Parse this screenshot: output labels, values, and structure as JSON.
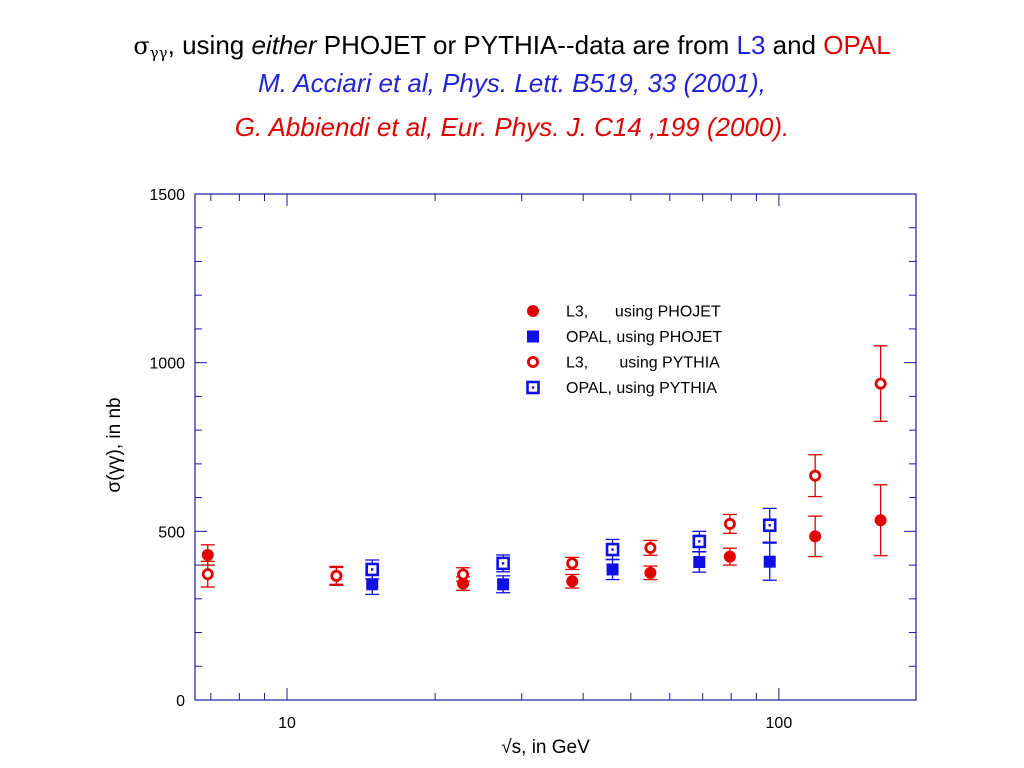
{
  "title": {
    "line1": {
      "symbol": "σ",
      "subscript": "γγ",
      "part1": ", using ",
      "either": "either",
      "part2": " PHOJET or PYTHIA--data are from ",
      "l3": "L3",
      "and": " and ",
      "opal": "OPAL"
    },
    "line2": "M. Acciari et al, Phys. Lett. B519, 33 (2001),",
    "line3": "G. Abbiendi et al, Eur. Phys. J. C14 ,199 (2000)."
  },
  "colors": {
    "l3": "#e00000",
    "opal": "#1010e6",
    "axis": "#1a1aa0"
  },
  "chart_data": {
    "type": "scatter",
    "xlabel": "√s, in GeV",
    "ylabel": "σ(γγ), in nb",
    "xscale": "log",
    "xlim": [
      6.5,
      190
    ],
    "ylim": [
      0,
      1500
    ],
    "xticks": [
      10,
      100
    ],
    "yticks": [
      0,
      500,
      1000,
      1500
    ],
    "legend_position": "top-right",
    "series": [
      {
        "name": "L3,      using PHOJET",
        "marker": "filled-circle",
        "color": "#e00000",
        "points": [
          {
            "x": 6.9,
            "y": 430,
            "err": 30
          },
          {
            "x": 12.6,
            "y": 368,
            "err": 25
          },
          {
            "x": 22.8,
            "y": 345,
            "err": 20
          },
          {
            "x": 38.0,
            "y": 352,
            "err": 20
          },
          {
            "x": 54.8,
            "y": 377,
            "err": 20
          },
          {
            "x": 79.5,
            "y": 425,
            "err": 25
          },
          {
            "x": 118.5,
            "y": 485,
            "err": 60
          },
          {
            "x": 161.0,
            "y": 533,
            "err": 105
          }
        ]
      },
      {
        "name": "OPAL, using PHOJET",
        "marker": "filled-square",
        "color": "#1010e6",
        "points": [
          {
            "x": 14.9,
            "y": 343,
            "err": 30
          },
          {
            "x": 27.5,
            "y": 343,
            "err": 25
          },
          {
            "x": 45.9,
            "y": 387,
            "err": 30
          },
          {
            "x": 68.9,
            "y": 409,
            "err": 30
          },
          {
            "x": 95.8,
            "y": 410,
            "err": 55
          }
        ]
      },
      {
        "name": "L3,       using PYTHIA",
        "marker": "open-circle",
        "color": "#e00000",
        "points": [
          {
            "x": 6.9,
            "y": 373,
            "err": 38
          },
          {
            "x": 12.6,
            "y": 368,
            "err": 28
          },
          {
            "x": 22.8,
            "y": 372,
            "err": 20
          },
          {
            "x": 38.0,
            "y": 405,
            "err": 18
          },
          {
            "x": 54.8,
            "y": 451,
            "err": 22
          },
          {
            "x": 79.5,
            "y": 522,
            "err": 28
          },
          {
            "x": 118.5,
            "y": 665,
            "err": 62
          },
          {
            "x": 161.0,
            "y": 938,
            "err": 112
          }
        ]
      },
      {
        "name": "OPAL, using PYTHIA",
        "marker": "open-square",
        "color": "#1010e6",
        "points": [
          {
            "x": 14.9,
            "y": 387,
            "err": 28
          },
          {
            "x": 27.5,
            "y": 405,
            "err": 25
          },
          {
            "x": 45.9,
            "y": 446,
            "err": 30
          },
          {
            "x": 68.9,
            "y": 470,
            "err": 30
          },
          {
            "x": 95.8,
            "y": 518,
            "err": 50
          }
        ]
      }
    ]
  }
}
